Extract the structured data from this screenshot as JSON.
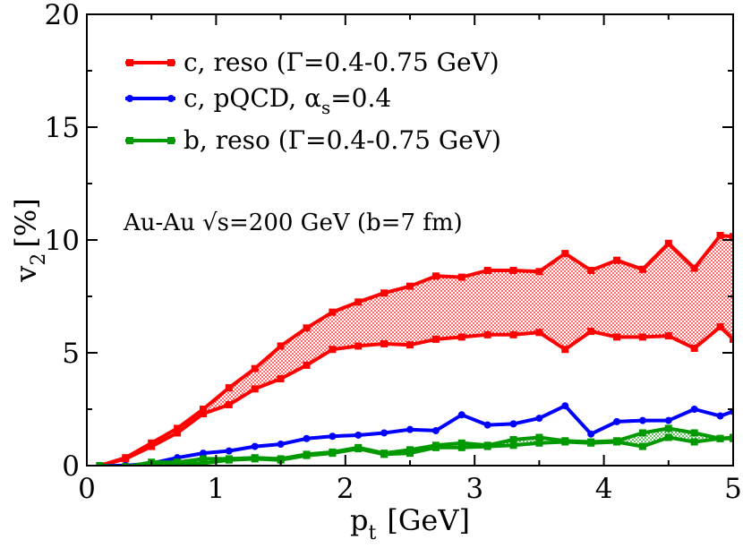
{
  "chart_data": {
    "type": "line",
    "xlabel": {
      "main": "p",
      "sub": "t",
      "unit": "[GeV]"
    },
    "ylabel": {
      "main": "v",
      "sub": "2",
      "unit": "[%]"
    },
    "xlim": [
      0,
      5
    ],
    "ylim": [
      0,
      20
    ],
    "xticks": [
      0,
      1,
      2,
      3,
      4,
      5
    ],
    "yticks": [
      0,
      5,
      10,
      15,
      20
    ],
    "xtick_labels": [
      "0",
      "1",
      "2",
      "3",
      "4",
      "5"
    ],
    "ytick_labels": [
      "0",
      "5",
      "10",
      "15",
      "20"
    ],
    "annotation": "Au-Au √s=200 GeV (b=7 fm)",
    "legend_position": "top-left",
    "legend": [
      {
        "text": "c, reso (Γ=0.4-0.75 GeV)",
        "color": "#ff0000",
        "marker": "square"
      },
      {
        "text_main": "c, pQCD, α",
        "text_sub": "s",
        "text_tail": "=0.4",
        "color": "#0000ff",
        "marker": "circle"
      },
      {
        "text": "b, reso (Γ=0.4-0.75 GeV)",
        "color": "#009900",
        "marker": "square"
      }
    ],
    "series": [
      {
        "color": "#ff0000",
        "marker": "square",
        "band": true,
        "x": [
          0.1,
          0.3,
          0.5,
          0.7,
          0.9,
          1.1,
          1.3,
          1.5,
          1.7,
          1.9,
          2.1,
          2.3,
          2.5,
          2.7,
          2.9,
          3.1,
          3.3,
          3.5,
          3.7,
          3.9,
          4.1,
          4.3,
          4.5,
          4.7,
          4.9,
          5.0
        ],
        "upper": [
          0.0,
          0.35,
          1.0,
          1.65,
          2.5,
          3.45,
          4.3,
          5.3,
          6.1,
          6.8,
          7.25,
          7.65,
          7.95,
          8.4,
          8.35,
          8.65,
          8.65,
          8.6,
          9.4,
          8.65,
          9.1,
          8.7,
          9.85,
          8.75,
          10.2,
          10.15
        ],
        "lower": [
          0.0,
          0.3,
          0.85,
          1.45,
          2.3,
          2.7,
          3.4,
          3.85,
          4.45,
          5.15,
          5.3,
          5.4,
          5.35,
          5.6,
          5.7,
          5.8,
          5.8,
          5.9,
          5.15,
          5.95,
          5.7,
          5.7,
          5.75,
          5.2,
          6.15,
          5.6
        ]
      },
      {
        "color": "#0000ff",
        "marker": "circle",
        "band": false,
        "x": [
          0.1,
          0.3,
          0.5,
          0.7,
          0.9,
          1.1,
          1.3,
          1.5,
          1.7,
          1.9,
          2.1,
          2.3,
          2.5,
          2.7,
          2.9,
          3.1,
          3.3,
          3.5,
          3.7,
          3.9,
          4.1,
          4.3,
          4.5,
          4.7,
          4.9,
          5.0
        ],
        "values": [
          0.0,
          0.0,
          0.1,
          0.35,
          0.55,
          0.65,
          0.85,
          0.95,
          1.2,
          1.3,
          1.35,
          1.45,
          1.6,
          1.55,
          2.25,
          1.8,
          1.85,
          2.1,
          2.65,
          1.4,
          1.95,
          2.0,
          2.0,
          2.5,
          2.2,
          2.4
        ]
      },
      {
        "color": "#009900",
        "marker": "square",
        "band": true,
        "x": [
          0.1,
          0.3,
          0.5,
          0.7,
          0.9,
          1.1,
          1.3,
          1.5,
          1.7,
          1.9,
          2.1,
          2.3,
          2.5,
          2.7,
          2.9,
          3.1,
          3.3,
          3.5,
          3.7,
          3.9,
          4.1,
          4.3,
          4.5,
          4.7,
          4.9,
          5.0
        ],
        "upper": [
          0.0,
          -0.05,
          0.15,
          0.15,
          0.3,
          0.3,
          0.35,
          0.3,
          0.5,
          0.6,
          0.8,
          0.55,
          0.7,
          0.9,
          1.0,
          0.9,
          1.15,
          1.25,
          1.1,
          1.05,
          1.1,
          1.45,
          1.65,
          1.45,
          1.2,
          1.25
        ],
        "lower": [
          0.0,
          -0.1,
          0.0,
          0.1,
          0.1,
          0.25,
          0.3,
          0.25,
          0.45,
          0.55,
          0.75,
          0.5,
          0.55,
          0.8,
          0.8,
          0.85,
          0.9,
          1.0,
          1.05,
          1.0,
          1.05,
          0.85,
          1.25,
          1.05,
          1.2,
          1.2
        ]
      }
    ]
  }
}
